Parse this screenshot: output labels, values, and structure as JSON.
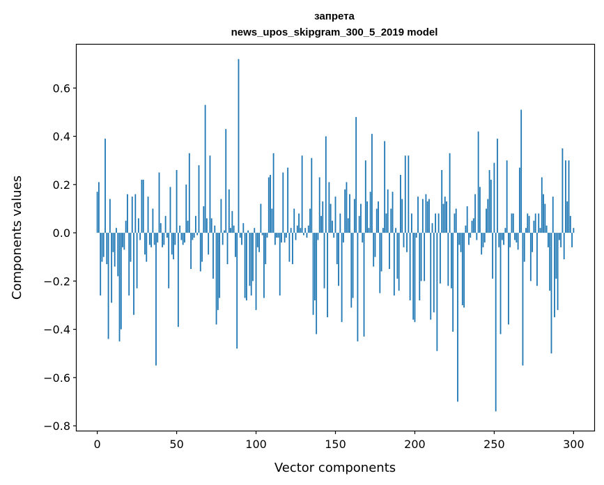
{
  "chart_data": {
    "type": "bar",
    "title": "запрета",
    "subtitle": "news_upos_skipgram_300_5_2019 model",
    "xlabel": "Vector components",
    "ylabel": "Components values",
    "xlim": [
      -13,
      313
    ],
    "ylim": [
      -0.82,
      0.78
    ],
    "xticks": [
      0,
      50,
      100,
      150,
      200,
      250,
      300
    ],
    "xtick_labels": [
      "0",
      "50",
      "100",
      "150",
      "200",
      "250",
      "300"
    ],
    "yticks": [
      -0.8,
      -0.6,
      -0.4,
      -0.2,
      0.0,
      0.2,
      0.4,
      0.6
    ],
    "ytick_labels": [
      "−0.8",
      "−0.6",
      "−0.4",
      "−0.2",
      "0.0",
      "0.2",
      "0.4",
      "0.6"
    ],
    "grid": false,
    "bar_color": "#1f77b4",
    "series": [
      {
        "name": "components",
        "x_start": 0,
        "values": [
          0.17,
          0.21,
          -0.26,
          -0.12,
          -0.1,
          0.39,
          -0.13,
          -0.44,
          0.14,
          -0.29,
          -0.08,
          -0.14,
          0.02,
          -0.18,
          -0.45,
          -0.4,
          -0.06,
          -0.07,
          0.05,
          0.16,
          -0.26,
          -0.12,
          0.15,
          -0.34,
          0.16,
          -0.23,
          0.06,
          -0.03,
          0.22,
          0.22,
          -0.09,
          -0.12,
          0.15,
          -0.05,
          -0.06,
          0.1,
          -0.05,
          -0.55,
          -0.04,
          0.25,
          0.04,
          -0.06,
          -0.05,
          0.07,
          -0.02,
          -0.23,
          0.19,
          -0.09,
          -0.11,
          -0.05,
          0.26,
          -0.39,
          0.03,
          -0.03,
          -0.05,
          -0.04,
          0.2,
          0.05,
          0.33,
          -0.15,
          -0.03,
          -0.02,
          0.07,
          -0.01,
          0.28,
          -0.16,
          -0.12,
          0.11,
          0.53,
          0.06,
          -0.09,
          0.32,
          0.06,
          -0.19,
          0.03,
          -0.38,
          -0.32,
          -0.27,
          0.14,
          -0.05,
          0.01,
          0.43,
          -0.13,
          0.18,
          0.02,
          0.09,
          0.03,
          -0.1,
          -0.48,
          0.72,
          -0.02,
          -0.05,
          0.04,
          -0.27,
          -0.28,
          0.01,
          -0.22,
          -0.26,
          -0.2,
          0.02,
          -0.32,
          -0.06,
          -0.08,
          0.12,
          -0.01,
          -0.27,
          -0.13,
          -0.02,
          0.23,
          0.24,
          0.1,
          0.33,
          -0.05,
          -0.02,
          -0.02,
          -0.26,
          -0.04,
          0.25,
          -0.04,
          -0.02,
          0.27,
          -0.12,
          0.02,
          -0.13,
          0.1,
          -0.03,
          0.03,
          0.08,
          0.02,
          0.32,
          -0.01,
          0.02,
          -0.02,
          0.03,
          0.1,
          0.31,
          -0.34,
          -0.28,
          -0.42,
          -0.03,
          0.23,
          0.07,
          0.13,
          -0.23,
          0.4,
          -0.35,
          0.21,
          0.12,
          0.05,
          -0.02,
          0.15,
          -0.13,
          -0.22,
          0.08,
          -0.37,
          -0.04,
          0.18,
          0.21,
          0.06,
          0.16,
          -0.31,
          -0.27,
          0.14,
          0.48,
          -0.45,
          0.07,
          0.12,
          -0.04,
          -0.43,
          0.3,
          0.13,
          0.02,
          0.17,
          0.41,
          -0.14,
          -0.1,
          0.1,
          0.13,
          -0.25,
          -0.16,
          0.02,
          0.38,
          0.08,
          0.18,
          -0.15,
          0.1,
          0.17,
          -0.26,
          0.02,
          -0.19,
          -0.24,
          0.24,
          0.14,
          -0.06,
          0.32,
          -0.08,
          0.32,
          -0.28,
          0.08,
          -0.36,
          -0.37,
          -0.02,
          0.15,
          -0.28,
          -0.2,
          0.14,
          -0.2,
          0.16,
          0.13,
          0.14,
          -0.36,
          0.04,
          -0.33,
          0.08,
          -0.49,
          0.08,
          -0.21,
          0.26,
          0.12,
          0.15,
          0.13,
          -0.22,
          0.33,
          -0.23,
          -0.41,
          0.08,
          0.1,
          -0.7,
          -0.05,
          -0.08,
          -0.3,
          -0.31,
          0.03,
          0.11,
          -0.05,
          -0.02,
          0.05,
          0.06,
          0.16,
          -0.03,
          0.42,
          0.19,
          -0.09,
          -0.06,
          -0.04,
          0.1,
          0.14,
          0.26,
          0.22,
          -0.19,
          0.29,
          -0.74,
          0.39,
          -0.06,
          -0.42,
          -0.03,
          -0.05,
          0.02,
          0.3,
          -0.38,
          -0.06,
          0.08,
          0.08,
          -0.03,
          -0.04,
          -0.07,
          0.27,
          0.51,
          -0.55,
          -0.12,
          0.02,
          0.08,
          0.07,
          -0.2,
          -0.08,
          0.05,
          0.08,
          -0.22,
          0.08,
          0.02,
          0.23,
          0.16,
          0.12,
          0.03,
          -0.06,
          -0.24,
          -0.5,
          0.15,
          -0.35,
          -0.19,
          -0.32,
          -0.03,
          -0.06,
          0.35,
          -0.11,
          0.3,
          0.13,
          0.3,
          0.07,
          -0.06,
          0.02
        ]
      }
    ]
  }
}
